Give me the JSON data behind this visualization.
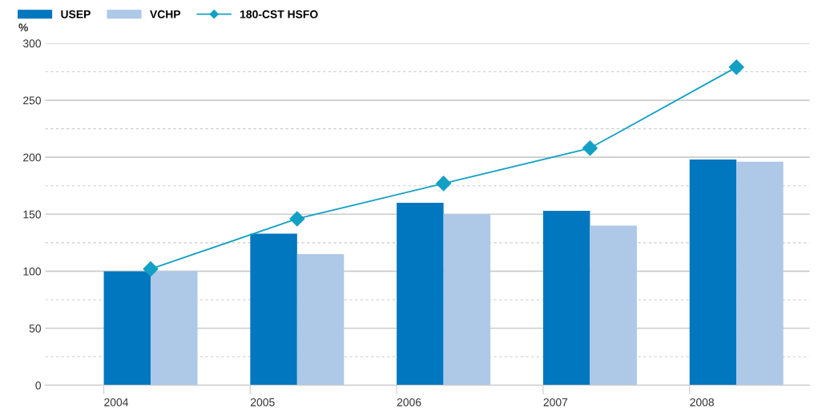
{
  "chart_data": {
    "type": "bar",
    "ylabel": "%",
    "categories": [
      "2004",
      "2005",
      "2006",
      "2007",
      "2008"
    ],
    "series": [
      {
        "name": "USEP",
        "color": "#0077be",
        "values": [
          100,
          133,
          160,
          153,
          198
        ]
      },
      {
        "name": "VCHP",
        "color": "#aec8e8",
        "values": [
          100,
          115,
          150,
          140,
          196
        ]
      },
      {
        "name": "180-CST HSFO",
        "type": "line",
        "color": "#12a0c4",
        "marker": "diamond",
        "values": [
          102,
          146,
          177,
          208,
          279
        ]
      }
    ],
    "ylim": [
      0,
      300
    ],
    "yticks": [
      0,
      {
        "value": 25,
        "label": null
      },
      50,
      {
        "value": 75,
        "label": null
      },
      100,
      {
        "value": 125,
        "label": null
      },
      150,
      {
        "value": 175,
        "label": null
      },
      200,
      {
        "value": 225,
        "label": null
      },
      250,
      {
        "value": 275,
        "label": null
      },
      300
    ],
    "grid": "y",
    "legend": "top left"
  }
}
